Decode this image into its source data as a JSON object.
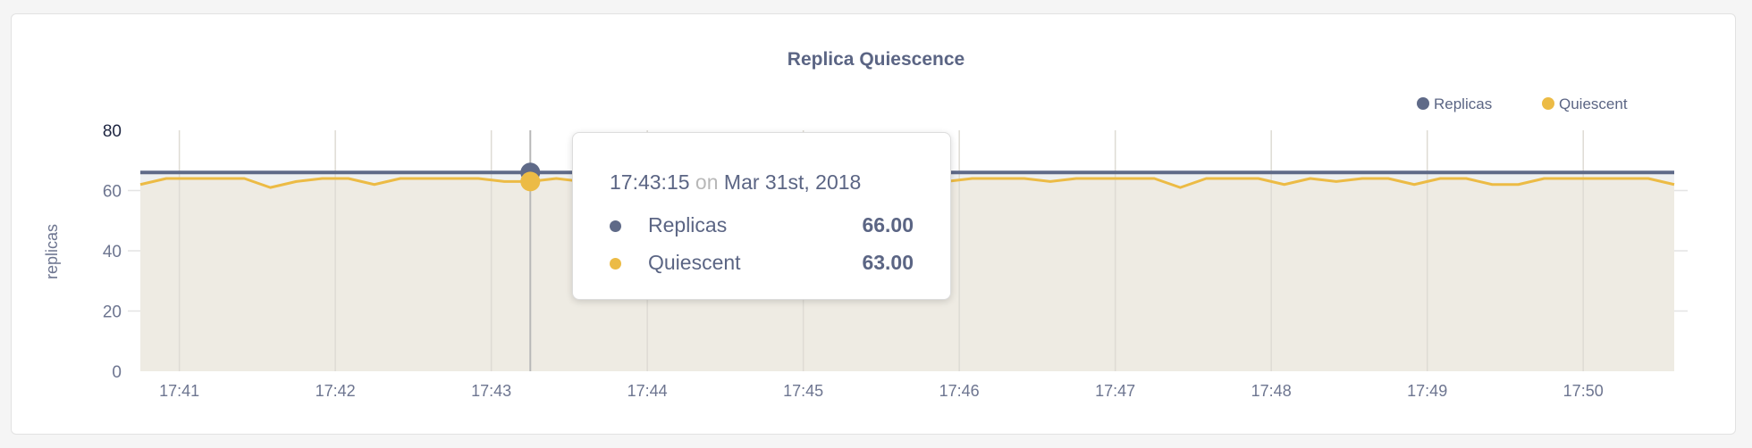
{
  "chart_data": {
    "type": "line",
    "title": "Replica Quiescence",
    "ylabel": "replicas",
    "xlabel": "",
    "ylim": [
      0,
      80
    ],
    "yticks": [
      "0",
      "20",
      "40",
      "60",
      "80"
    ],
    "xticks": [
      "17:41",
      "17:42",
      "17:43",
      "17:44",
      "17:45",
      "17:46",
      "17:47",
      "17:48",
      "17:49",
      "17:50"
    ],
    "grid": true,
    "legend_position": "top-right",
    "x_start": "17:40:45",
    "x_interval_seconds": 10,
    "series": [
      {
        "name": "Replicas",
        "color": "#5f6a88",
        "fill": "#eef0f1",
        "values": [
          66,
          66,
          66,
          66,
          66,
          66,
          66,
          66,
          66,
          66,
          66,
          66,
          66,
          66,
          66,
          66,
          66,
          66,
          66,
          66,
          66,
          66,
          66,
          66,
          66,
          66,
          66,
          66,
          66,
          66,
          66,
          66,
          66,
          66,
          66,
          66,
          66,
          66,
          66,
          66,
          66,
          66,
          66,
          66,
          66,
          66,
          66,
          66,
          66,
          66,
          66,
          66,
          66,
          66,
          66,
          66,
          66,
          66,
          66,
          66
        ]
      },
      {
        "name": "Quiescent",
        "color": "#ecbb45",
        "fill": "#eeebe3",
        "values": [
          62,
          64,
          64,
          64,
          64,
          61,
          63,
          64,
          64,
          62,
          64,
          64,
          64,
          64,
          63,
          63,
          64,
          63,
          64,
          64,
          64,
          64,
          64,
          64,
          64,
          64,
          64,
          64,
          64,
          64,
          64,
          63,
          64,
          64,
          64,
          63,
          64,
          64,
          64,
          64,
          61,
          64,
          64,
          64,
          62,
          64,
          63,
          64,
          64,
          62,
          64,
          64,
          62,
          62,
          64,
          64,
          64,
          64,
          64,
          62
        ]
      }
    ],
    "hover": {
      "time": "17:43:15",
      "on": "on",
      "date": "Mar 31st, 2018",
      "index": 15,
      "rows": [
        {
          "name": "Replicas",
          "value": "66.00",
          "color": "#5f6a88"
        },
        {
          "name": "Quiescent",
          "value": "63.00",
          "color": "#ecbb45"
        }
      ]
    }
  }
}
